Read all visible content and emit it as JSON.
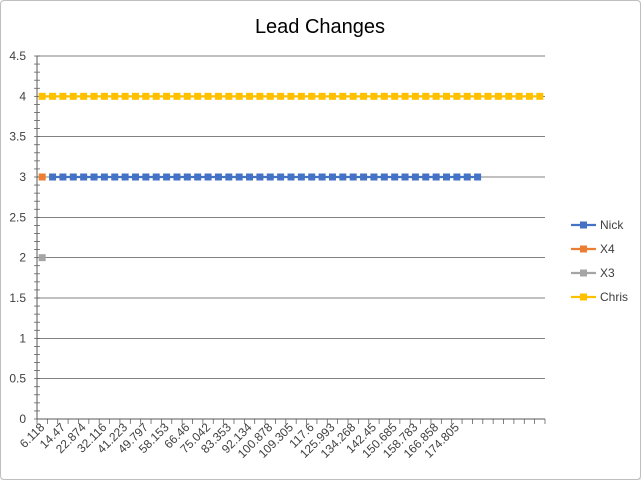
{
  "chart_data": {
    "type": "line",
    "title": "Lead Changes",
    "xlabel": "",
    "ylabel": "",
    "ylim": [
      0,
      4.5
    ],
    "yticks": [
      "0",
      "0.5",
      "1",
      "1.5",
      "2",
      "2.5",
      "3",
      "3.5",
      "4",
      "4.5"
    ],
    "x_tick_labels": [
      "6.118",
      "14.47",
      "22.874",
      "32.116",
      "41.223",
      "49.797",
      "58.153",
      "66.46",
      "75.042",
      "83.353",
      "92.134",
      "100.878",
      "109.305",
      "117.6",
      "125.993",
      "134.268",
      "142.45",
      "150.685",
      "158.783",
      "166.858",
      "174.805"
    ],
    "category_count": 49,
    "grid": true,
    "legend_position": "right",
    "series": [
      {
        "name": "Nick",
        "color": "#4472C4",
        "start": 1,
        "end": 42,
        "value": 3
      },
      {
        "name": "X4",
        "color": "#ED7D31",
        "start": 0,
        "end": 0,
        "value": 3
      },
      {
        "name": "X3",
        "color": "#A5A5A5",
        "start": 0,
        "end": 0,
        "value": 2
      },
      {
        "name": "Chris",
        "color": "#FFC000",
        "start": 0,
        "end": 48,
        "value": 4
      }
    ]
  }
}
